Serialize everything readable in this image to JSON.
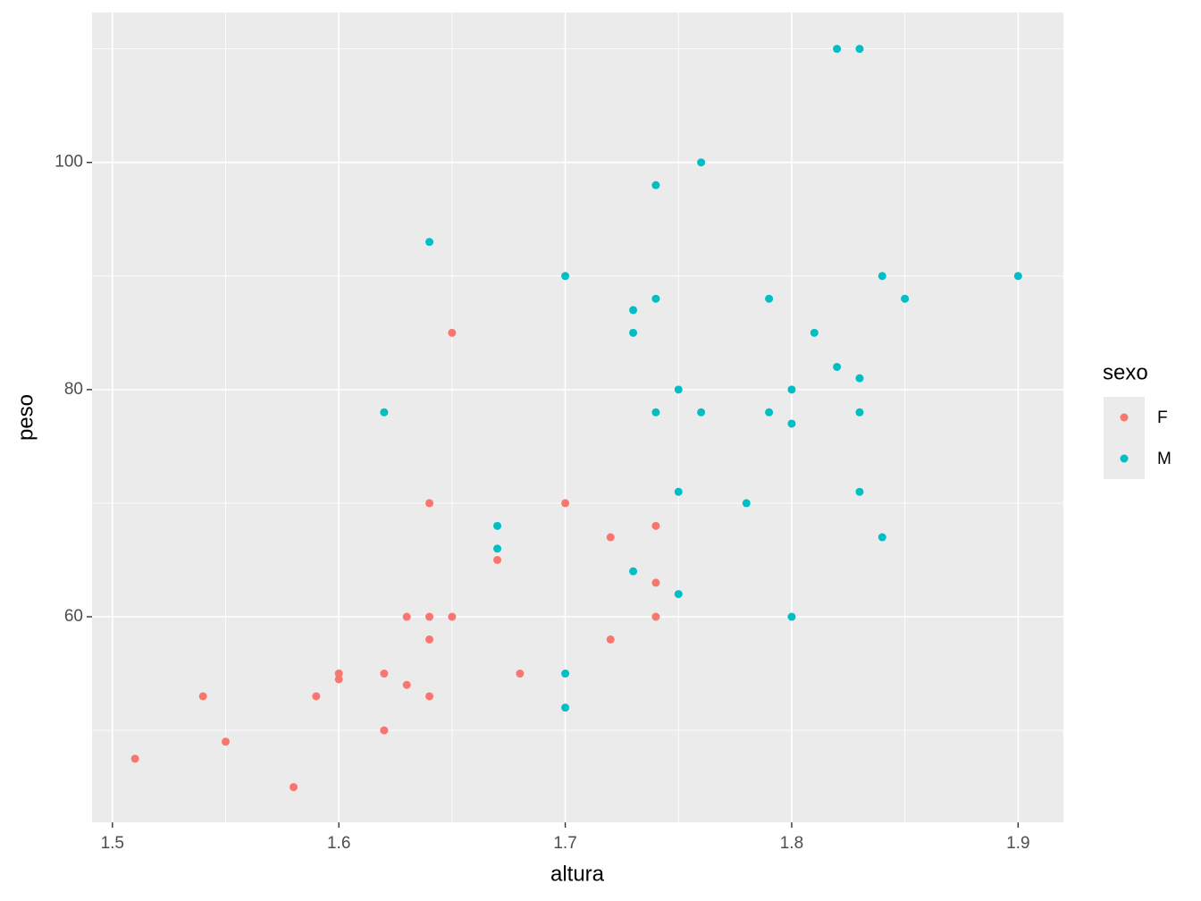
{
  "chart_data": {
    "type": "scatter",
    "x_label": "altura",
    "y_label": "peso",
    "xlim": [
      1.491,
      1.92
    ],
    "ylim": [
      41.9,
      113.2
    ],
    "xticks": [
      1.5,
      1.6,
      1.7,
      1.8,
      1.9
    ],
    "yticks": [
      60,
      80,
      100
    ],
    "x_minor_grid": [
      1.55,
      1.65,
      1.75,
      1.85
    ],
    "y_minor_grid": [
      50,
      70,
      90,
      110
    ],
    "grid": true,
    "legend_title": "sexo",
    "legend_position": "right",
    "series": [
      {
        "name": "F",
        "color": "#F8766D",
        "x": [
          1.51,
          1.54,
          1.55,
          1.58,
          1.59,
          1.6,
          1.6,
          1.62,
          1.62,
          1.63,
          1.63,
          1.64,
          1.64,
          1.64,
          1.64,
          1.65,
          1.65,
          1.67,
          1.68,
          1.7,
          1.72,
          1.72,
          1.74,
          1.74,
          1.74
        ],
        "values": [
          47.5,
          53,
          49,
          45,
          53,
          55,
          54.5,
          55,
          50,
          60,
          54,
          70,
          60,
          58,
          53,
          85,
          60,
          65,
          55,
          70,
          67,
          58,
          68,
          63,
          60
        ]
      },
      {
        "name": "M",
        "color": "#00BFC4",
        "x": [
          1.62,
          1.64,
          1.67,
          1.67,
          1.7,
          1.7,
          1.7,
          1.73,
          1.73,
          1.73,
          1.74,
          1.74,
          1.74,
          1.75,
          1.75,
          1.75,
          1.76,
          1.76,
          1.78,
          1.79,
          1.79,
          1.8,
          1.8,
          1.8,
          1.81,
          1.82,
          1.82,
          1.83,
          1.83,
          1.83,
          1.83,
          1.84,
          1.84,
          1.85,
          1.9
        ],
        "values": [
          78,
          93,
          68,
          66,
          90,
          55,
          52,
          87,
          85,
          64,
          98,
          88,
          78,
          80,
          71,
          62,
          100,
          78,
          70,
          88,
          78,
          80,
          77,
          60,
          85,
          110,
          82,
          110,
          81,
          78,
          71,
          90,
          67,
          88,
          90
        ]
      }
    ]
  }
}
